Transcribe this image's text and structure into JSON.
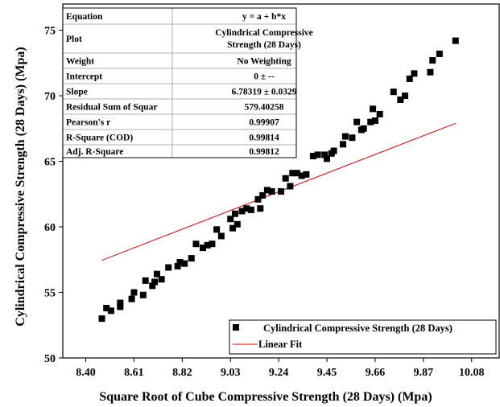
{
  "chart_data": {
    "type": "scatter",
    "xlabel": "Square Root of Cube Compressive Strength (28 Days) (Mpa)",
    "ylabel": "Cylindrical Compressive Strength  (28 Days) (Mpa)",
    "xlim": [
      8.3,
      10.2
    ],
    "ylim": [
      50,
      77
    ],
    "xticks": [
      8.4,
      8.61,
      8.82,
      9.03,
      9.24,
      9.45,
      9.66,
      9.87,
      10.08
    ],
    "xtick_labels": [
      "8.40",
      "8.61",
      "8.82",
      "9.03",
      "9.24",
      "9.45",
      "9.66",
      "9.87",
      "10.08"
    ],
    "yticks": [
      50,
      55,
      60,
      65,
      70,
      75
    ],
    "ytick_labels": [
      "50",
      "55",
      "60",
      "65",
      "70",
      "75"
    ],
    "grid": false,
    "legend_position": "bottom-right",
    "series": [
      {
        "name": "Cylindrical Compressive Strength  (28 Days)",
        "kind": "scatter",
        "marker": "square",
        "color": "#000000",
        "points": [
          [
            8.47,
            53.0
          ],
          [
            8.49,
            53.8
          ],
          [
            8.51,
            53.6
          ],
          [
            8.55,
            54.2
          ],
          [
            8.55,
            53.9
          ],
          [
            8.6,
            54.5
          ],
          [
            8.61,
            55.0
          ],
          [
            8.65,
            54.8
          ],
          [
            8.66,
            55.9
          ],
          [
            8.69,
            55.5
          ],
          [
            8.7,
            55.8
          ],
          [
            8.71,
            56.4
          ],
          [
            8.73,
            56.0
          ],
          [
            8.76,
            56.9
          ],
          [
            8.8,
            57.0
          ],
          [
            8.81,
            57.3
          ],
          [
            8.83,
            57.2
          ],
          [
            8.86,
            57.6
          ],
          [
            8.88,
            58.7
          ],
          [
            8.91,
            58.4
          ],
          [
            8.93,
            58.6
          ],
          [
            8.95,
            58.7
          ],
          [
            8.97,
            59.8
          ],
          [
            8.99,
            59.3
          ],
          [
            9.03,
            60.6
          ],
          [
            9.04,
            59.9
          ],
          [
            9.05,
            61.0
          ],
          [
            9.06,
            60.2
          ],
          [
            9.08,
            61.2
          ],
          [
            9.1,
            61.4
          ],
          [
            9.12,
            61.3
          ],
          [
            9.15,
            62.1
          ],
          [
            9.16,
            61.4
          ],
          [
            9.17,
            62.4
          ],
          [
            9.19,
            62.8
          ],
          [
            9.21,
            62.7
          ],
          [
            9.25,
            62.7
          ],
          [
            9.27,
            63.7
          ],
          [
            9.29,
            63.1
          ],
          [
            9.3,
            64.1
          ],
          [
            9.32,
            64.1
          ],
          [
            9.34,
            63.9
          ],
          [
            9.36,
            64.0
          ],
          [
            9.39,
            65.4
          ],
          [
            9.41,
            65.5
          ],
          [
            9.44,
            65.5
          ],
          [
            9.45,
            65.2
          ],
          [
            9.47,
            65.6
          ],
          [
            9.48,
            65.8
          ],
          [
            9.52,
            66.3
          ],
          [
            9.53,
            66.9
          ],
          [
            9.56,
            66.8
          ],
          [
            9.58,
            68.0
          ],
          [
            9.6,
            67.4
          ],
          [
            9.61,
            67.5
          ],
          [
            9.64,
            68.0
          ],
          [
            9.65,
            69.0
          ],
          [
            9.66,
            68.1
          ],
          [
            9.68,
            68.6
          ],
          [
            9.74,
            70.3
          ],
          [
            9.77,
            69.7
          ],
          [
            9.79,
            70.0
          ],
          [
            9.81,
            71.3
          ],
          [
            9.83,
            71.7
          ],
          [
            9.9,
            71.8
          ],
          [
            9.91,
            72.7
          ],
          [
            9.94,
            73.2
          ],
          [
            10.01,
            74.2
          ]
        ]
      },
      {
        "name": "Linear Fit",
        "kind": "line",
        "color": "#e00000",
        "x": [
          8.47,
          10.01
        ],
        "y": [
          57.45,
          67.9
        ]
      }
    ],
    "fit_table": {
      "rows": [
        [
          "Equation",
          "y = a + b*x"
        ],
        [
          "Plot",
          "Cylindrical Compressive Strength  (28 Days)"
        ],
        [
          "Weight",
          "No Weighting"
        ],
        [
          "Intercept",
          "0 ± --"
        ],
        [
          "Slope",
          "6.78319 ± 0.0329"
        ],
        [
          "Residual Sum of Squar",
          "579.40258"
        ],
        [
          "Pearson's r",
          "0.99907"
        ],
        [
          "R-Square (COD)",
          "0.99814"
        ],
        [
          "Adj. R-Square",
          "0.99812"
        ]
      ],
      "plot_line1": "Cylindrical Compressive",
      "plot_line2": "Strength  (28 Days)"
    }
  }
}
